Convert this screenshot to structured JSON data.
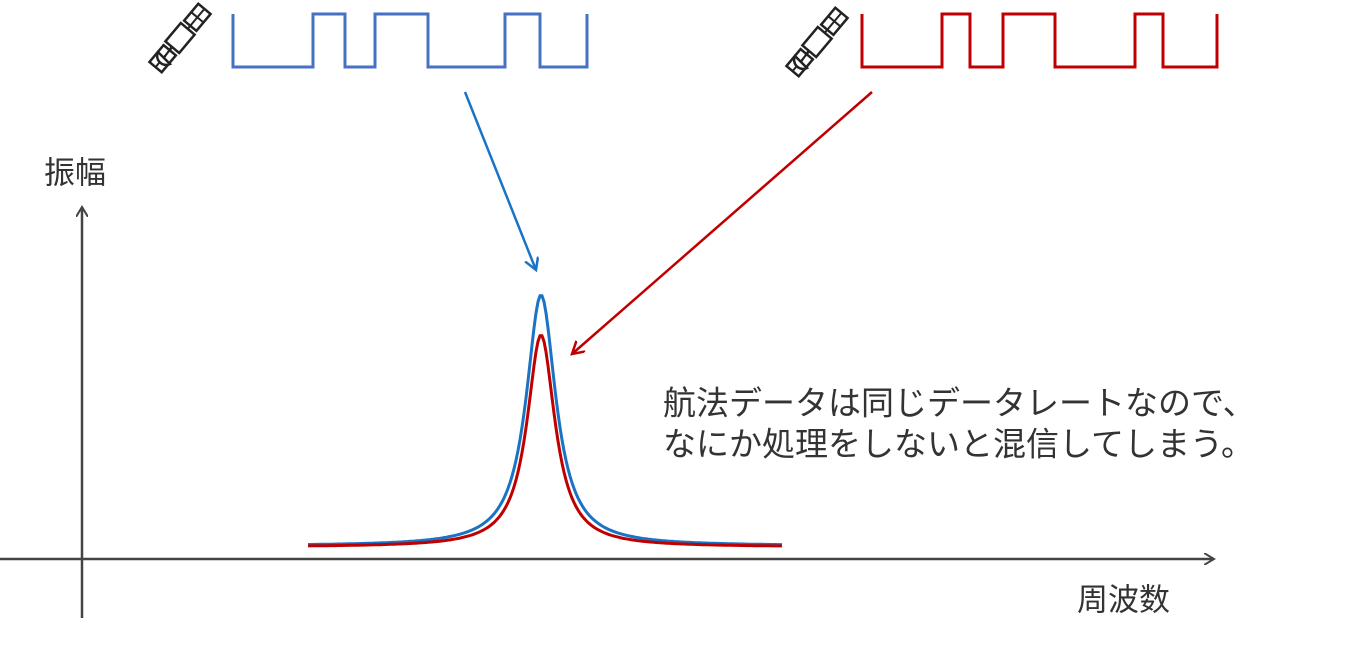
{
  "axis_labels": {
    "y": "振幅",
    "x": "周波数"
  },
  "annotation": [
    "航法データは同じデータレートなので、",
    "なにか処理をしないと混信してしまう。"
  ]
}
